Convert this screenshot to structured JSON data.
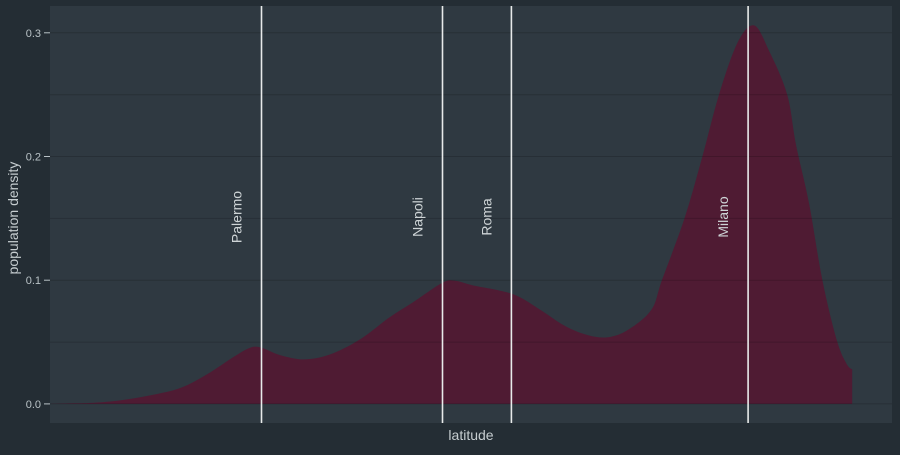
{
  "colors": {
    "background": "#242d34",
    "panel": "#2f3941",
    "gridline": "rgba(0,0,0,0.16)",
    "area_fill": "#4f1b33",
    "marker_line": "#e8eaea",
    "tick": "#b9c2c6",
    "axis_title": "#c6cdd0",
    "marker_label": "#ced4d6"
  },
  "chart_data": {
    "type": "area",
    "title": "",
    "xlabel": "latitude",
    "ylabel": "population density",
    "legend": "none",
    "grid": "on",
    "x_domain": [
      34.93,
      47.63
    ],
    "y_domain_padded": [
      -0.0154,
      0.3217
    ],
    "ylim": [
      0.0,
      0.3
    ],
    "gridline_values": [
      0,
      0.05,
      0.1,
      0.15,
      0.2,
      0.25,
      0.3
    ],
    "y_ticks": [
      {
        "value": 0.0,
        "label": "0.0"
      },
      {
        "value": 0.1,
        "label": "0.1"
      },
      {
        "value": 0.2,
        "label": "0.2"
      },
      {
        "value": 0.3,
        "label": "0.3"
      }
    ],
    "x_tick_labels": [],
    "series": [
      {
        "name": "population density by latitude",
        "points": [
          [
            34.93,
            0.0
          ],
          [
            35.3,
            0.0005
          ],
          [
            35.6,
            0.001
          ],
          [
            36.0,
            0.003
          ],
          [
            36.45,
            0.007
          ],
          [
            36.9,
            0.013
          ],
          [
            37.3,
            0.024
          ],
          [
            37.7,
            0.038
          ],
          [
            37.95,
            0.0455
          ],
          [
            38.12,
            0.0455
          ],
          [
            38.4,
            0.0395
          ],
          [
            38.76,
            0.036
          ],
          [
            39.15,
            0.04
          ],
          [
            39.6,
            0.052
          ],
          [
            40.05,
            0.07
          ],
          [
            40.4,
            0.082
          ],
          [
            40.85,
            0.098
          ],
          [
            41.05,
            0.0995
          ],
          [
            41.3,
            0.096
          ],
          [
            41.9,
            0.089
          ],
          [
            42.3,
            0.077
          ],
          [
            42.7,
            0.063
          ],
          [
            43.05,
            0.0555
          ],
          [
            43.35,
            0.054
          ],
          [
            43.65,
            0.06
          ],
          [
            44.0,
            0.076
          ],
          [
            44.16,
            0.1
          ],
          [
            44.5,
            0.15
          ],
          [
            44.77,
            0.2
          ],
          [
            45.02,
            0.25
          ],
          [
            45.3,
            0.292
          ],
          [
            45.55,
            0.306
          ],
          [
            45.78,
            0.285
          ],
          [
            46.05,
            0.25
          ],
          [
            46.18,
            0.21
          ],
          [
            46.38,
            0.162
          ],
          [
            46.58,
            0.1
          ],
          [
            46.8,
            0.051
          ],
          [
            46.95,
            0.032
          ],
          [
            47.03,
            0.028
          ]
        ]
      }
    ],
    "city_markers": [
      {
        "name": "Palermo",
        "lat": 38.12
      },
      {
        "name": "Napoli",
        "lat": 40.85
      },
      {
        "name": "Roma",
        "lat": 41.89
      },
      {
        "name": "Milano",
        "lat": 45.46
      }
    ]
  }
}
